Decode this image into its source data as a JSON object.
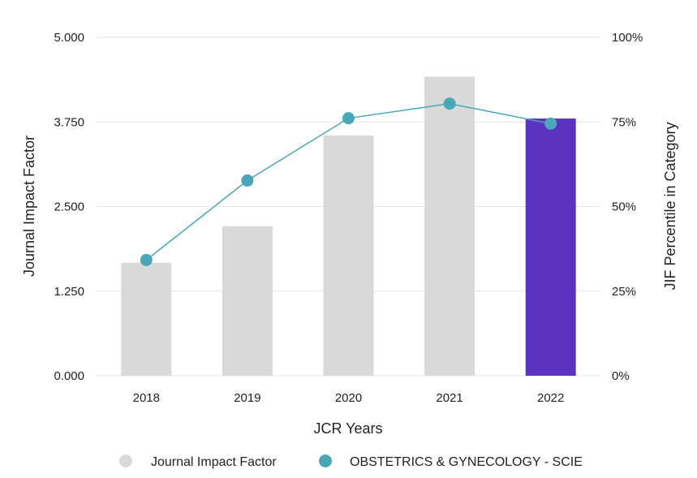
{
  "chart_data": {
    "type": "bar",
    "categories": [
      "2018",
      "2019",
      "2020",
      "2021",
      "2022"
    ],
    "series": [
      {
        "name": "Journal Impact Factor",
        "kind": "bar",
        "axis": "left",
        "values": [
          1.67,
          2.21,
          3.55,
          4.42,
          3.8
        ],
        "colors": [
          "#d9d9d9",
          "#d9d9d9",
          "#d9d9d9",
          "#d9d9d9",
          "#5b33c0"
        ]
      },
      {
        "name": "OBSTETRICS & GYNECOLOGY - SCIE",
        "kind": "line",
        "axis": "right",
        "values": [
          34.2,
          57.7,
          76.1,
          80.4,
          74.5
        ],
        "color": "#4aa7b8"
      }
    ],
    "xlabel": "JCR Years",
    "ylabel_left": "Journal Impact Factor",
    "ylabel_right": "JIF Percentile in Category",
    "ylim_left": [
      0,
      5
    ],
    "ylim_right": [
      0,
      100
    ],
    "yticks_left": [
      "0.000",
      "1.250",
      "2.500",
      "3.750",
      "5.000"
    ],
    "yticks_right": [
      "0%",
      "25%",
      "50%",
      "75%",
      "100%"
    ],
    "legend_position": "bottom",
    "legend": [
      {
        "label": "Journal Impact Factor",
        "color": "#d9d9d9"
      },
      {
        "label": "OBSTETRICS & GYNECOLOGY - SCIE",
        "color": "#4aa7b8"
      }
    ]
  }
}
